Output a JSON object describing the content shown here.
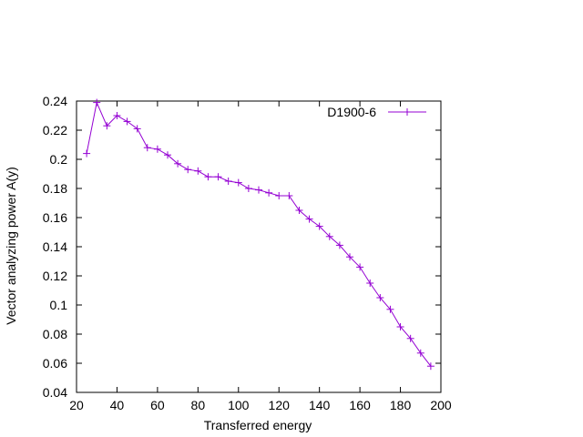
{
  "chart_data": {
    "type": "line",
    "xlabel": "Transferred energy",
    "ylabel": "Vector analyzing power A(y)",
    "xlim": [
      20,
      200
    ],
    "ylim": [
      0.04,
      0.24
    ],
    "xticks": [
      20,
      40,
      60,
      80,
      100,
      120,
      140,
      160,
      180,
      200
    ],
    "yticks": [
      0.04,
      0.06,
      0.08,
      0.1,
      0.12,
      0.14,
      0.16,
      0.18,
      0.2,
      0.22,
      0.24
    ],
    "xtick_labels": [
      "20",
      "40",
      "60",
      "80",
      "100",
      "120",
      "140",
      "160",
      "180",
      "200"
    ],
    "ytick_labels": [
      "0.04",
      "0.06",
      "0.08",
      "0.1",
      "0.12",
      "0.14",
      "0.16",
      "0.18",
      "0.2",
      "0.22",
      "0.24"
    ],
    "grid": false,
    "legend_position": "top-right",
    "series": [
      {
        "name": "D1900-6",
        "color": "#9400d3",
        "marker": "plus",
        "x": [
          25,
          30,
          35,
          40,
          45,
          50,
          55,
          60,
          65,
          70,
          75,
          80,
          85,
          90,
          95,
          100,
          105,
          110,
          115,
          120,
          125,
          130,
          135,
          140,
          145,
          150,
          155,
          160,
          165,
          170,
          175,
          180,
          185,
          190,
          195
        ],
        "y": [
          0.204,
          0.239,
          0.223,
          0.23,
          0.226,
          0.221,
          0.208,
          0.207,
          0.203,
          0.197,
          0.193,
          0.192,
          0.188,
          0.188,
          0.185,
          0.184,
          0.18,
          0.179,
          0.177,
          0.175,
          0.175,
          0.165,
          0.159,
          0.154,
          0.147,
          0.141,
          0.133,
          0.126,
          0.115,
          0.105,
          0.097,
          0.085,
          0.077,
          0.067,
          0.058
        ]
      }
    ]
  }
}
